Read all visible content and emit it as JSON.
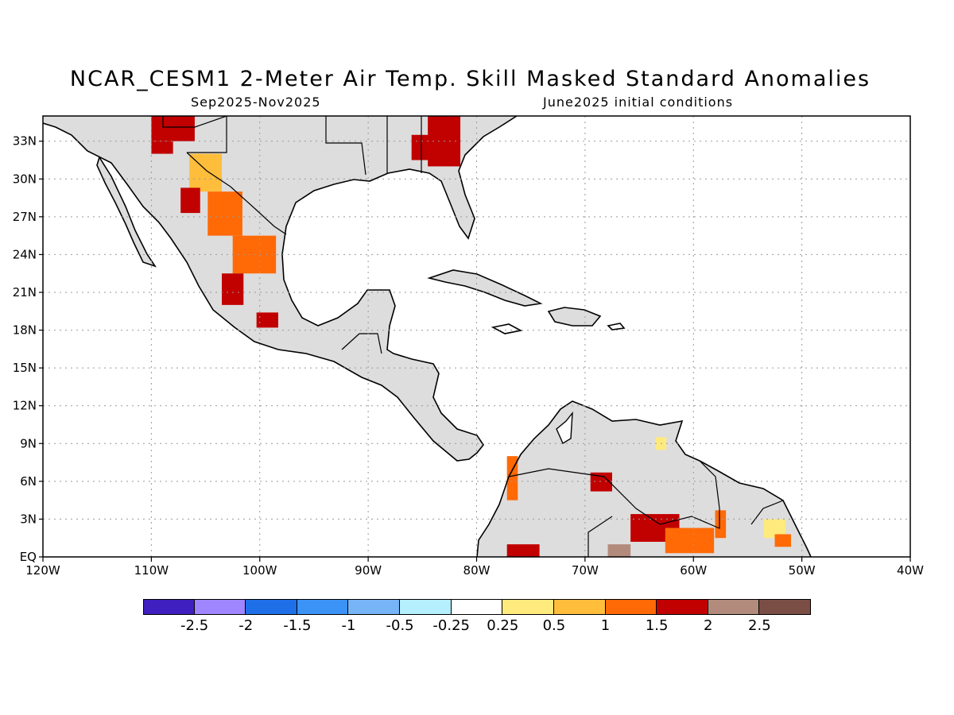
{
  "header": {
    "title": "NCAR_CESM1 2-Meter Air Temp. Skill Masked Standard Anomalies",
    "period": "Sep2025-Nov2025",
    "init": "June2025 initial conditions"
  },
  "map": {
    "lon_range": [
      -120,
      -40
    ],
    "lat_range": [
      0,
      35
    ],
    "lon_ticks": [
      {
        "v": -120,
        "label": "120W"
      },
      {
        "v": -110,
        "label": "110W"
      },
      {
        "v": -100,
        "label": "100W"
      },
      {
        "v": -90,
        "label": "90W"
      },
      {
        "v": -80,
        "label": "80W"
      },
      {
        "v": -70,
        "label": "70W"
      },
      {
        "v": -60,
        "label": "60W"
      },
      {
        "v": -50,
        "label": "50W"
      },
      {
        "v": -40,
        "label": "40W"
      }
    ],
    "lat_ticks": [
      {
        "v": 0,
        "label": "EQ"
      },
      {
        "v": 3,
        "label": "3N"
      },
      {
        "v": 6,
        "label": "6N"
      },
      {
        "v": 9,
        "label": "9N"
      },
      {
        "v": 12,
        "label": "12N"
      },
      {
        "v": 15,
        "label": "15N"
      },
      {
        "v": 18,
        "label": "18N"
      },
      {
        "v": 21,
        "label": "21N"
      },
      {
        "v": 24,
        "label": "24N"
      },
      {
        "v": 27,
        "label": "27N"
      },
      {
        "v": 30,
        "label": "30N"
      },
      {
        "v": 33,
        "label": "33N"
      }
    ],
    "grid": true,
    "land_color": "#dddddd",
    "coast_color": "#000000",
    "anomaly_cells": [
      {
        "lon": -110,
        "lat": 33,
        "w": 4,
        "h": 2,
        "level": 2
      },
      {
        "lon": -110,
        "lat": 32,
        "w": 2,
        "h": 1,
        "level": 2
      },
      {
        "lon": -106.5,
        "lat": 29,
        "w": 3,
        "h": 3,
        "level": 1
      },
      {
        "lon": -107.3,
        "lat": 27.3,
        "w": 1.8,
        "h": 2,
        "level": 2
      },
      {
        "lon": -104.8,
        "lat": 25.5,
        "w": 3.2,
        "h": 3.5,
        "level": 1.5
      },
      {
        "lon": -102.5,
        "lat": 22.5,
        "w": 4,
        "h": 3,
        "level": 1.5
      },
      {
        "lon": -103.5,
        "lat": 20,
        "w": 2,
        "h": 2.5,
        "level": 2
      },
      {
        "lon": -100.3,
        "lat": 18.2,
        "w": 2,
        "h": 1.2,
        "level": 2
      },
      {
        "lon": -86,
        "lat": 31.5,
        "w": 2,
        "h": 2,
        "level": 2
      },
      {
        "lon": -84.5,
        "lat": 31,
        "w": 3,
        "h": 4,
        "level": 2
      },
      {
        "lon": -77.2,
        "lat": 4.5,
        "w": 1,
        "h": 3.5,
        "level": 1.5
      },
      {
        "lon": -69.5,
        "lat": 5.2,
        "w": 2,
        "h": 1.5,
        "level": 2
      },
      {
        "lon": -77.2,
        "lat": 0,
        "w": 3,
        "h": 1,
        "level": 2
      },
      {
        "lon": -65.8,
        "lat": 1.2,
        "w": 4.5,
        "h": 2.2,
        "level": 2
      },
      {
        "lon": -62.6,
        "lat": 0.3,
        "w": 4.5,
        "h": 2,
        "level": 1.5
      },
      {
        "lon": -58,
        "lat": 1.5,
        "w": 1,
        "h": 2.2,
        "level": 1.5
      },
      {
        "lon": -67.9,
        "lat": 0,
        "w": 2.1,
        "h": 1,
        "level": 2.5
      },
      {
        "lon": -63.5,
        "lat": 8.5,
        "w": 1,
        "h": 1,
        "level": 0.5
      },
      {
        "lon": -53.5,
        "lat": 1.5,
        "w": 2,
        "h": 1.5,
        "level": 0.5
      },
      {
        "lon": -52.5,
        "lat": 0.8,
        "w": 1.5,
        "h": 1,
        "level": 1.5
      }
    ]
  },
  "colorbar": {
    "colors": [
      "#3f1fbf",
      "#9f86ff",
      "#1f6fe8",
      "#3b93f5",
      "#77b4f5",
      "#b5eefc",
      "#ffffff",
      "#ffea7d",
      "#ffbd3c",
      "#ff6a07",
      "#c10000",
      "#b38b7d",
      "#7b4e45"
    ],
    "labels": [
      "-2.5",
      "-2",
      "-1.5",
      "-1",
      "-0.5",
      "-0.25",
      "0.25",
      "0.5",
      "1",
      "1.5",
      "2",
      "2.5"
    ]
  }
}
